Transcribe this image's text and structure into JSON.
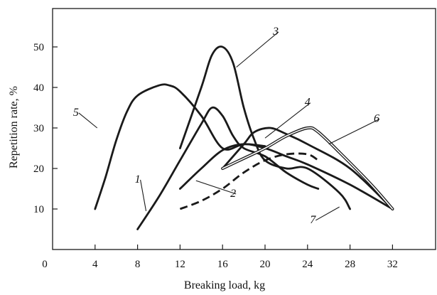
{
  "chart_data": {
    "type": "line",
    "xlabel": "Breaking load, kg",
    "ylabel": "Repetition rate, %",
    "xlim": [
      0,
      36
    ],
    "ylim": [
      0,
      55
    ],
    "x_ticks": [
      0,
      4,
      8,
      12,
      16,
      20,
      24,
      28,
      32
    ],
    "y_ticks": [
      10,
      20,
      30,
      40,
      50
    ],
    "grid": false,
    "legend": "none (curves labelled by number on the plot)",
    "line_color": "#1a1a1a",
    "series": [
      {
        "name": "1",
        "style": "solid",
        "points": [
          [
            8,
            5
          ],
          [
            10,
            13
          ],
          [
            12,
            22
          ],
          [
            14,
            31
          ],
          [
            15,
            35
          ],
          [
            16,
            33
          ],
          [
            17,
            28
          ],
          [
            18,
            25
          ],
          [
            20,
            23
          ],
          [
            22,
            19
          ],
          [
            24,
            16
          ],
          [
            25,
            15
          ]
        ]
      },
      {
        "name": "2",
        "style": "solid",
        "points": [
          [
            12,
            15
          ],
          [
            14,
            20
          ],
          [
            16,
            24.5
          ],
          [
            18,
            26
          ],
          [
            20,
            25
          ],
          [
            22,
            23
          ],
          [
            24,
            21
          ],
          [
            28,
            16
          ],
          [
            32,
            10
          ]
        ]
      },
      {
        "name": "3",
        "style": "solid",
        "points": [
          [
            12,
            25
          ],
          [
            14,
            40
          ],
          [
            15,
            48
          ],
          [
            16,
            50
          ],
          [
            17,
            46
          ],
          [
            18,
            35
          ],
          [
            19,
            27
          ],
          [
            20,
            22
          ],
          [
            22,
            20
          ],
          [
            24,
            20
          ],
          [
            27,
            14
          ],
          [
            28,
            10
          ]
        ]
      },
      {
        "name": "4",
        "style": "solid",
        "points": [
          [
            16,
            20
          ],
          [
            18,
            26
          ],
          [
            19,
            29
          ],
          [
            20.5,
            30
          ],
          [
            22,
            28.5
          ],
          [
            24,
            26
          ],
          [
            28,
            20
          ],
          [
            32,
            10
          ]
        ]
      },
      {
        "name": "5",
        "style": "solid",
        "points": [
          [
            4,
            10
          ],
          [
            5,
            18
          ],
          [
            6,
            27
          ],
          [
            7,
            34
          ],
          [
            8,
            38
          ],
          [
            10,
            40.5
          ],
          [
            11,
            40.5
          ],
          [
            12,
            39
          ],
          [
            14,
            33
          ],
          [
            16,
            25
          ],
          [
            18,
            26
          ],
          [
            20,
            25.5
          ]
        ]
      },
      {
        "name": "6",
        "style": "double",
        "points": [
          [
            16,
            20
          ],
          [
            18,
            22.5
          ],
          [
            20,
            25
          ],
          [
            22,
            28
          ],
          [
            24,
            30
          ],
          [
            25,
            29
          ],
          [
            27,
            24
          ],
          [
            30,
            16
          ],
          [
            32,
            10
          ]
        ]
      },
      {
        "name": "7",
        "style": "dashed",
        "points": [
          [
            12,
            10
          ],
          [
            14,
            12
          ],
          [
            16,
            15
          ],
          [
            18,
            19
          ],
          [
            20,
            22
          ],
          [
            22,
            23.5
          ],
          [
            24,
            23.5
          ],
          [
            25,
            22
          ]
        ]
      }
    ],
    "labels": [
      {
        "text": "1",
        "x": 8.0,
        "y": 16.5,
        "lx": 8.8,
        "ly": 9.5
      },
      {
        "text": "2",
        "x": 17.0,
        "y": 13.0,
        "lx": 13.5,
        "ly": 17.0
      },
      {
        "text": "3",
        "x": 21.0,
        "y": 53.0,
        "lx": 17.3,
        "ly": 45.0
      },
      {
        "text": "4",
        "x": 24.0,
        "y": 35.5,
        "lx": 20.0,
        "ly": 27.5
      },
      {
        "text": "5",
        "x": 2.2,
        "y": 33.0,
        "lx": 4.2,
        "ly": 30.0
      },
      {
        "text": "6",
        "x": 30.5,
        "y": 31.5,
        "lx": 26.0,
        "ly": 26.0
      },
      {
        "text": "7",
        "x": 24.5,
        "y": 6.5,
        "lx": 27.0,
        "ly": 10.5
      }
    ]
  }
}
